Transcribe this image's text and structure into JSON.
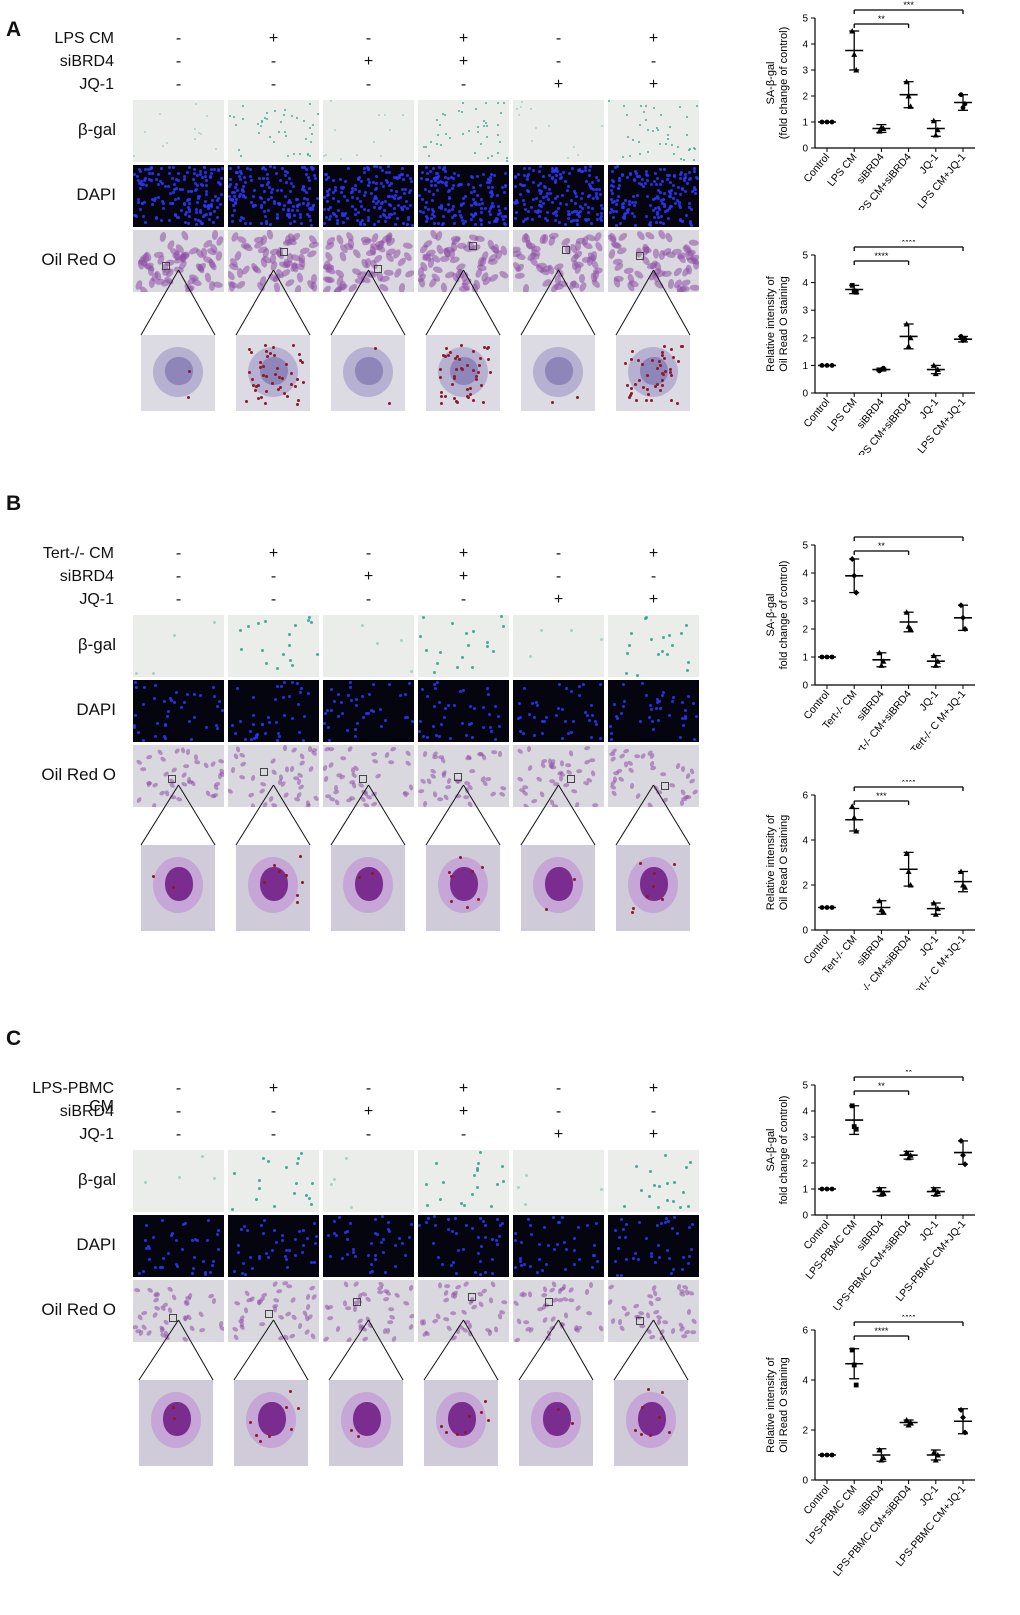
{
  "panels": [
    {
      "label": "A",
      "treatments": [
        {
          "name": "LPS CM",
          "signs": [
            "-",
            "+",
            "-",
            "+",
            "-",
            "+"
          ]
        },
        {
          "name": "siBRD4",
          "signs": [
            "-",
            "-",
            "+",
            "+",
            "-",
            "-"
          ]
        },
        {
          "name": "JQ-1",
          "signs": [
            "-",
            "-",
            "-",
            "-",
            "+",
            "+"
          ]
        }
      ],
      "rows": [
        "β-gal",
        "DAPI",
        "Oil Red O"
      ],
      "style": "dense"
    },
    {
      "label": "B",
      "treatments": [
        {
          "name": "Tert-/- CM",
          "signs": [
            "-",
            "+",
            "-",
            "+",
            "-",
            "+"
          ]
        },
        {
          "name": "siBRD4",
          "signs": [
            "-",
            "-",
            "+",
            "+",
            "-",
            "-"
          ]
        },
        {
          "name": "JQ-1",
          "signs": [
            "-",
            "-",
            "-",
            "-",
            "+",
            "+"
          ]
        }
      ],
      "rows": [
        "β-gal",
        "DAPI",
        "Oil Red O"
      ],
      "style": "sparse"
    },
    {
      "label": "C",
      "treatments": [
        {
          "name": "LPS-PBMC CM",
          "signs": [
            "-",
            "+",
            "-",
            "+",
            "-",
            "+"
          ]
        },
        {
          "name": "siBRD4",
          "signs": [
            "-",
            "-",
            "+",
            "+",
            "-",
            "-"
          ]
        },
        {
          "name": "JQ-1",
          "signs": [
            "-",
            "-",
            "-",
            "-",
            "+",
            "+"
          ]
        }
      ],
      "rows": [
        "β-gal",
        "DAPI",
        "Oil Red O"
      ],
      "style": "sparse"
    }
  ],
  "colors": {
    "bgal_tile": "#ebedea",
    "bgal_stain": "#2a9d8f",
    "dapi_tile": "#050510",
    "dapi_nuclei": "#2b35ff",
    "oil_tile": "#d9d8de",
    "cell_purple": "#8e4fa6",
    "lipid_red": "#8b1a2b"
  },
  "chart_data": [
    {
      "type": "scatter",
      "panel": "A",
      "ylabel": "SA-β-gal\n(fold change of control)",
      "ylim": [
        0,
        5
      ],
      "yticks": [
        0,
        1,
        2,
        3,
        4,
        5
      ],
      "categories": [
        "Control",
        "LPS CM",
        "siBRD4",
        "LPS CM+siBRD4",
        "JQ-1",
        "LPS CM+JQ-1"
      ],
      "mean": [
        1.0,
        3.75,
        0.75,
        2.05,
        0.75,
        1.75
      ],
      "sd": [
        0.0,
        0.75,
        0.15,
        0.5,
        0.3,
        0.3
      ],
      "points": [
        [
          1,
          1,
          1
        ],
        [
          4.5,
          3.6,
          3.0
        ],
        [
          0.65,
          0.8,
          0.75
        ],
        [
          2.55,
          2.0,
          1.6
        ],
        [
          1.05,
          0.5,
          0.7
        ],
        [
          2.05,
          1.55,
          1.7
        ]
      ],
      "markers": [
        "circle",
        "triangle",
        "triangle",
        "triangle",
        "triangle",
        "circle"
      ],
      "significance": [
        {
          "from": 1,
          "to": 3,
          "label": "**"
        },
        {
          "from": 1,
          "to": 5,
          "label": "***"
        }
      ]
    },
    {
      "type": "scatter",
      "panel": "A",
      "ylabel": "Relative intensity of\nOil Read O staining",
      "ylim": [
        0,
        5
      ],
      "yticks": [
        0,
        1,
        2,
        3,
        4,
        5
      ],
      "categories": [
        "Control",
        "LPS CM",
        "siBRD4",
        "LPS CM+siBRD4",
        "JQ-1",
        "LPS CM+JQ-1"
      ],
      "mean": [
        1.0,
        3.75,
        0.85,
        2.05,
        0.85,
        1.95
      ],
      "sd": [
        0.0,
        0.15,
        0.05,
        0.45,
        0.15,
        0.1
      ],
      "points": [
        [
          1,
          1,
          1
        ],
        [
          3.9,
          3.7,
          3.65
        ],
        [
          0.8,
          0.85,
          0.9
        ],
        [
          2.5,
          1.7,
          2.0
        ],
        [
          1.0,
          0.7,
          0.85
        ],
        [
          2.05,
          1.9,
          1.95
        ]
      ],
      "markers": [
        "circle",
        "square",
        "circle",
        "triangle",
        "triangle",
        "circle"
      ],
      "significance": [
        {
          "from": 1,
          "to": 3,
          "label": "****"
        },
        {
          "from": 1,
          "to": 5,
          "label": "****"
        }
      ]
    },
    {
      "type": "scatter",
      "panel": "B",
      "ylabel": "SA-β-gal\nfold change of control)",
      "ylim": [
        0,
        5
      ],
      "yticks": [
        0,
        1,
        2,
        3,
        4,
        5
      ],
      "categories": [
        "Control",
        "Tert-/- CM",
        "siBRD4",
        "Tert-/- CM+siBRD4",
        "JQ-1",
        "Tert-/- C M+JQ-1"
      ],
      "mean": [
        1.0,
        3.9,
        0.9,
        2.25,
        0.85,
        2.4
      ],
      "sd": [
        0.0,
        0.6,
        0.25,
        0.35,
        0.2,
        0.45
      ],
      "points": [
        [
          1,
          1,
          1
        ],
        [
          4.5,
          3.9,
          3.3
        ],
        [
          1.15,
          0.7,
          0.85
        ],
        [
          2.6,
          2.1,
          2.0
        ],
        [
          1.05,
          0.7,
          0.85
        ],
        [
          2.85,
          2.4,
          2.0
        ]
      ],
      "markers": [
        "circle",
        "diamond",
        "triangle",
        "triangle",
        "triangle",
        "diamond"
      ],
      "significance": [
        {
          "from": 1,
          "to": 3,
          "label": "**"
        },
        {
          "from": 1,
          "to": 5,
          "label": "**"
        }
      ]
    },
    {
      "type": "scatter",
      "panel": "B",
      "ylabel": "Relative intensity of\nOil Read O staining",
      "ylim": [
        0,
        6
      ],
      "yticks": [
        0,
        2,
        4,
        6
      ],
      "categories": [
        "Control",
        "Tert-/- CM",
        "siBRD4",
        "Tert-/- CM+siBRD4",
        "JQ-1",
        "Tert-/- C M+JQ-1"
      ],
      "mean": [
        1.0,
        4.9,
        1.0,
        2.7,
        0.95,
        2.15
      ],
      "sd": [
        0.0,
        0.5,
        0.3,
        0.75,
        0.25,
        0.45
      ],
      "points": [
        [
          1,
          1,
          1
        ],
        [
          5.5,
          5.0,
          4.4
        ],
        [
          1.3,
          0.9,
          0.8
        ],
        [
          3.4,
          2.6,
          2.0
        ],
        [
          1.2,
          0.7,
          0.95
        ],
        [
          2.6,
          2.0,
          1.9
        ]
      ],
      "markers": [
        "circle",
        "triangle",
        "triangle",
        "triangle",
        "triangle",
        "triangle"
      ],
      "significance": [
        {
          "from": 1,
          "to": 3,
          "label": "***"
        },
        {
          "from": 1,
          "to": 5,
          "label": "****"
        }
      ]
    },
    {
      "type": "scatter",
      "panel": "C",
      "ylabel": "SA-β-gal\nfold change of control)",
      "ylim": [
        0,
        5
      ],
      "yticks": [
        0,
        1,
        2,
        3,
        4,
        5
      ],
      "categories": [
        "Control",
        "LPS-PBMC CM",
        "siBRD4",
        "LPS-PBMC CM+siBRD4",
        "JQ-1",
        "LPS-PBMC CM+JQ-1"
      ],
      "mean": [
        1.0,
        3.65,
        0.9,
        2.3,
        0.9,
        2.4
      ],
      "sd": [
        0.0,
        0.55,
        0.15,
        0.15,
        0.15,
        0.45
      ],
      "points": [
        [
          1,
          1,
          1
        ],
        [
          4.2,
          3.4,
          3.3
        ],
        [
          1.0,
          0.8,
          0.85
        ],
        [
          2.4,
          2.2,
          2.3
        ],
        [
          1.0,
          0.8,
          0.9
        ],
        [
          2.85,
          2.3,
          1.95
        ]
      ],
      "markers": [
        "circle",
        "square",
        "triangle",
        "triangle",
        "triangle",
        "diamond"
      ],
      "significance": [
        {
          "from": 1,
          "to": 3,
          "label": "**"
        },
        {
          "from": 1,
          "to": 5,
          "label": "**"
        }
      ]
    },
    {
      "type": "scatter",
      "panel": "C",
      "ylabel": "Relative intensity of\nOil Read O staining",
      "ylim": [
        0,
        6
      ],
      "yticks": [
        0,
        2,
        4,
        6
      ],
      "categories": [
        "Control",
        "LPS-PBMC CM",
        "siBRD4",
        "LPS-PBMC CM+siBRD4",
        "JQ-1",
        "LPS-PBMC CM+JQ-1"
      ],
      "mean": [
        1.0,
        4.65,
        1.0,
        2.3,
        1.0,
        2.35
      ],
      "sd": [
        0.0,
        0.6,
        0.25,
        0.1,
        0.2,
        0.5
      ],
      "points": [
        [
          1,
          1,
          1
        ],
        [
          5.2,
          4.6,
          3.8
        ],
        [
          1.2,
          0.8,
          0.9
        ],
        [
          2.4,
          2.2,
          2.3
        ],
        [
          1.1,
          0.8,
          1.0
        ],
        [
          2.8,
          2.5,
          1.9
        ]
      ],
      "markers": [
        "circle",
        "square",
        "triangle",
        "triangle",
        "triangle",
        "diamond"
      ],
      "significance": [
        {
          "from": 1,
          "to": 3,
          "label": "****"
        },
        {
          "from": 1,
          "to": 5,
          "label": "****"
        }
      ]
    }
  ]
}
